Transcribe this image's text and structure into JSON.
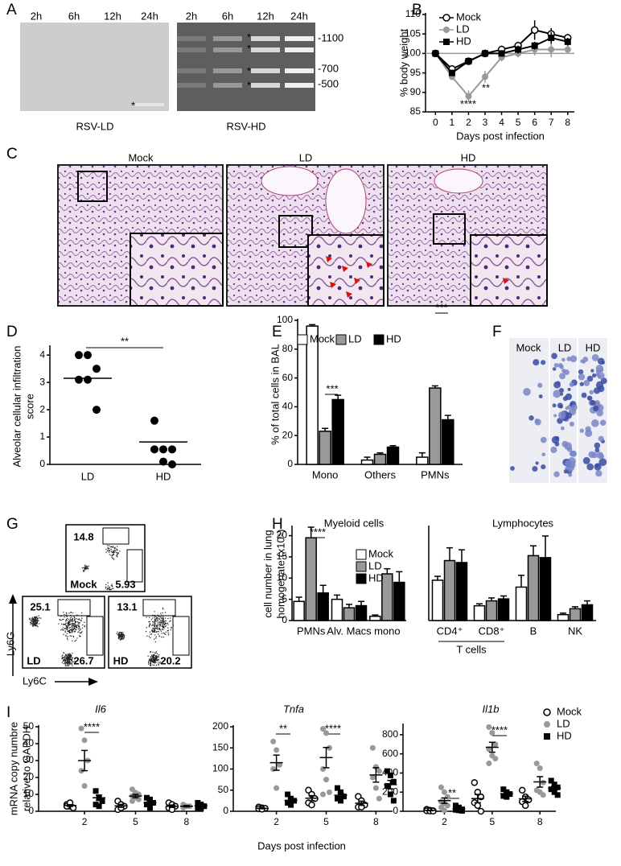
{
  "panel_letters": [
    "A",
    "B",
    "C",
    "D",
    "E",
    "F",
    "G",
    "H",
    "I"
  ],
  "gel": {
    "lanes": [
      "2h",
      "6h",
      "12h",
      "24h"
    ],
    "blots": [
      "RSV-LD",
      "RSV-HD"
    ],
    "markers": [
      "-1100",
      "-700",
      "-500"
    ],
    "asterisk": "*"
  },
  "histology": {
    "titles": [
      "Mock",
      "LD",
      "HD"
    ]
  },
  "cytospin": {
    "titles": [
      "Mock",
      "LD",
      "HD"
    ]
  },
  "flow": {
    "plots": [
      {
        "name": "Mock",
        "gates": [
          14.8,
          5.93
        ]
      },
      {
        "name": "LD",
        "gates": [
          25.1,
          26.7
        ]
      },
      {
        "name": "HD",
        "gates": [
          13.1,
          20.2
        ]
      }
    ],
    "y_label": "Ly6G",
    "x_label": "Ly6C"
  },
  "chart_data": [
    {
      "type": "line",
      "y_label": "% body weight",
      "x_label": "Days post infection",
      "x": [
        0,
        1,
        2,
        3,
        4,
        5,
        6,
        7,
        8
      ],
      "xlim": [
        -0.6,
        8.4
      ],
      "xticks": [
        0,
        1,
        2,
        3,
        4,
        5,
        6,
        7,
        8
      ],
      "ylim": [
        85,
        110
      ],
      "yticks": [
        85,
        90,
        95,
        100,
        105,
        110
      ],
      "reference_line": 100,
      "legend": "upper left",
      "series": [
        {
          "name": "Mock",
          "color": "#000000",
          "marker": "open-circle",
          "values": [
            100,
            96,
            98,
            100,
            101,
            102,
            106,
            105,
            104
          ],
          "errors": [
            0,
            0.5,
            0.5,
            0.5,
            1,
            1,
            2.5,
            1.5,
            1
          ]
        },
        {
          "name": "LD",
          "color": "#999999",
          "marker": "circle",
          "values": [
            100,
            94,
            89,
            94,
            99,
            100,
            101,
            101,
            101
          ],
          "errors": [
            0,
            0.5,
            1.5,
            1.5,
            1,
            1,
            1.5,
            2,
            1
          ]
        },
        {
          "name": "HD",
          "color": "#000000",
          "marker": "square",
          "values": [
            100,
            95,
            98,
            100,
            100,
            101,
            102,
            104,
            103
          ],
          "errors": [
            0,
            0.5,
            0.5,
            0.5,
            0.5,
            1,
            1,
            1.5,
            1
          ]
        }
      ],
      "annotations": [
        "****",
        "**"
      ]
    },
    {
      "type": "dot",
      "y_label": [
        "Alveolar cellular infiltration",
        "score"
      ],
      "categories": [
        "LD",
        "HD"
      ],
      "points": [
        [
          4,
          4,
          3.5,
          3.1,
          3.1,
          2
        ],
        [
          1.6,
          0.55,
          0.55,
          0.55,
          0.1,
          0
        ]
      ],
      "means": [
        3.15,
        0.82
      ],
      "color": "#000000",
      "ylim": [
        0,
        4.3
      ],
      "yticks": [
        0,
        1,
        2,
        3,
        4
      ],
      "annotations": [
        "**"
      ]
    },
    {
      "type": "bar",
      "y_label": "% of total cells in BAL",
      "categories": [
        "Mono",
        "Others",
        "PMNs"
      ],
      "ylim": [
        0,
        100
      ],
      "yticks": [
        0,
        20,
        40,
        60,
        80,
        100
      ],
      "legend": "top",
      "series": [
        {
          "name": "Mock",
          "color": "#ffffff",
          "values": [
            96,
            3,
            5
          ],
          "errors": [
            1,
            2,
            3
          ]
        },
        {
          "name": "LD",
          "color": "#999999",
          "values": [
            23,
            7,
            53
          ],
          "errors": [
            2,
            1,
            1.5
          ]
        },
        {
          "name": "HD",
          "color": "#000000",
          "values": [
            45,
            12,
            31
          ],
          "errors": [
            3,
            1,
            3
          ]
        }
      ],
      "annotations": [
        "***",
        "***"
      ]
    },
    {
      "type": "bar",
      "title": "Myeloid cells",
      "y_label": [
        "cell number in lung",
        "homogenate (x10⁵)"
      ],
      "categories": [
        "PMNs",
        "Alv. Macs",
        "mono"
      ],
      "ylim": [
        0,
        22
      ],
      "yticks": [
        0,
        5,
        10,
        15,
        20
      ],
      "legend": "upper right",
      "series": [
        {
          "name": "Mock",
          "color": "#ffffff",
          "values": [
            4.5,
            5,
            1
          ],
          "errors": [
            1,
            1,
            0.3
          ]
        },
        {
          "name": "LD",
          "color": "#999999",
          "values": [
            19.5,
            3,
            11
          ],
          "errors": [
            2.5,
            0.8,
            1.2
          ]
        },
        {
          "name": "HD",
          "color": "#000000",
          "values": [
            6.5,
            3.5,
            9
          ],
          "errors": [
            1.8,
            1,
            2.5
          ]
        }
      ],
      "annotations": [
        "****"
      ]
    },
    {
      "type": "bar",
      "title": "Lymphocytes",
      "categories": [
        "CD4⁺",
        "CD8⁺",
        "B",
        "NK"
      ],
      "group_label": "T cells",
      "ylim": [
        0,
        95
      ],
      "series": [
        {
          "color": "#ffffff",
          "values": [
            41,
            15,
            34,
            6
          ],
          "errors": [
            4,
            2,
            12,
            1.5
          ]
        },
        {
          "color": "#999999",
          "values": [
            61,
            20,
            66,
            12
          ],
          "errors": [
            13,
            3,
            10,
            2
          ]
        },
        {
          "color": "#000000",
          "values": [
            59,
            22,
            64,
            16
          ],
          "errors": [
            13,
            3,
            22,
            4
          ]
        }
      ]
    },
    {
      "type": "dot",
      "title": "Il6",
      "y_label": [
        "mRNA copy numbre",
        "relative to GAPDH"
      ],
      "x": [
        2,
        5,
        8
      ],
      "xlim": [
        -0.7,
        9
      ],
      "xticks": [
        2,
        5,
        8
      ],
      "ylim": [
        0,
        50
      ],
      "yticks": [
        0,
        10,
        20,
        30,
        40,
        50
      ],
      "series": [
        {
          "color": "#000000",
          "marker": "open-circle",
          "points": [
            [
              4,
              3,
              2,
              3,
              5
            ],
            [
              6,
              4,
              3,
              1,
              2
            ],
            [
              5,
              4,
              3,
              2,
              1
            ]
          ],
          "means": [
            3.4,
            3.2,
            3
          ],
          "errors": [
            0.5,
            0.9,
            0.7
          ]
        },
        {
          "color": "#999999",
          "marker": "circle",
          "points": [
            [
              49,
              42,
              30,
              24,
              15
            ],
            [
              13,
              11,
              10,
              9,
              8,
              7,
              6
            ],
            [
              4,
              3,
              3,
              2,
              3
            ]
          ],
          "means": [
            30,
            9,
            3
          ],
          "errors": [
            6,
            1,
            0.4
          ]
        },
        {
          "color": "#000000",
          "marker": "square",
          "points": [
            [
              12,
              8,
              6,
              4,
              3
            ],
            [
              8,
              7,
              5,
              4,
              2
            ],
            [
              5,
              4,
              3,
              2,
              2
            ]
          ],
          "means": [
            8,
            5,
            3.2
          ],
          "errors": [
            1.6,
            1.1,
            0.6
          ]
        }
      ],
      "annotations": [
        "****"
      ]
    },
    {
      "type": "dot",
      "title": "Tnfa",
      "x_label": "Days post infection",
      "x": [
        2,
        5,
        8
      ],
      "xlim": [
        -0.6,
        9
      ],
      "xticks": [
        2,
        5,
        8
      ],
      "ylim": [
        0,
        200
      ],
      "yticks": [
        0,
        50,
        100,
        150,
        200
      ],
      "series": [
        {
          "color": "#000000",
          "marker": "open-circle",
          "points": [
            [
              10,
              8,
              7,
              6,
              5
            ],
            [
              50,
              40,
              30,
              20,
              15
            ],
            [
              35,
              25,
              15,
              10,
              10
            ]
          ],
          "means": [
            7,
            31,
            19
          ],
          "errors": [
            1,
            6,
            5
          ]
        },
        {
          "color": "#999999",
          "marker": "circle",
          "points": [
            [
              165,
              145,
              110,
              100,
              55
            ],
            [
              195,
              185,
              150,
              100,
              75,
              45,
              40
            ],
            [
              150,
              105,
              95,
              80,
              55,
              30
            ]
          ],
          "means": [
            115,
            127,
            86
          ],
          "errors": [
            18,
            24,
            17
          ]
        },
        {
          "color": "#000000",
          "marker": "square",
          "points": [
            [
              40,
              30,
              25,
              20,
              15
            ],
            [
              55,
              45,
              35,
              30,
              25
            ],
            [
              95,
              85,
              70,
              60,
              40,
              25
            ]
          ],
          "means": [
            26,
            38,
            63
          ],
          "errors": [
            4,
            5,
            10
          ]
        }
      ],
      "annotations": [
        "**",
        "****"
      ]
    },
    {
      "type": "dot",
      "title": "Il1b",
      "x": [
        2,
        5,
        8
      ],
      "xlim": [
        -0.6,
        9
      ],
      "xticks": [
        2,
        5,
        8
      ],
      "ylim": [
        0,
        900
      ],
      "yticks": [
        0,
        200,
        400,
        600,
        800
      ],
      "legend": "upper right",
      "series": [
        {
          "name": "Mock",
          "color": "#000000",
          "marker": "open-circle",
          "points": [
            [
              20,
              10,
              5,
              5,
              3,
              2
            ],
            [
              300,
              200,
              150,
              90,
              60,
              0
            ],
            [
              220,
              150,
              120,
              100,
              60
            ]
          ],
          "means": [
            8,
            133,
            130
          ],
          "errors": [
            3,
            43,
            27
          ]
        },
        {
          "name": "LD",
          "color": "#999999",
          "marker": "circle",
          "points": [
            [
              250,
              200,
              150,
              100,
              80,
              60,
              40,
              10
            ],
            [
              880,
              820,
              700,
              650,
              580,
              550,
              500
            ],
            [
              500,
              450,
              300,
              220,
              200,
              170
            ]
          ],
          "means": [
            111,
            669,
            307
          ],
          "errors": [
            28,
            52,
            55
          ]
        },
        {
          "name": "HD",
          "color": "#000000",
          "marker": "square",
          "points": [
            [
              60,
              40,
              20,
              15,
              10,
              5
            ],
            [
              230,
              200,
              180,
              160,
              150
            ],
            [
              320,
              280,
              250,
              230,
              200,
              170
            ]
          ],
          "means": [
            25,
            184,
            242
          ],
          "errors": [
            8,
            14,
            22
          ]
        }
      ],
      "annotations": [
        "**",
        "****"
      ]
    }
  ]
}
